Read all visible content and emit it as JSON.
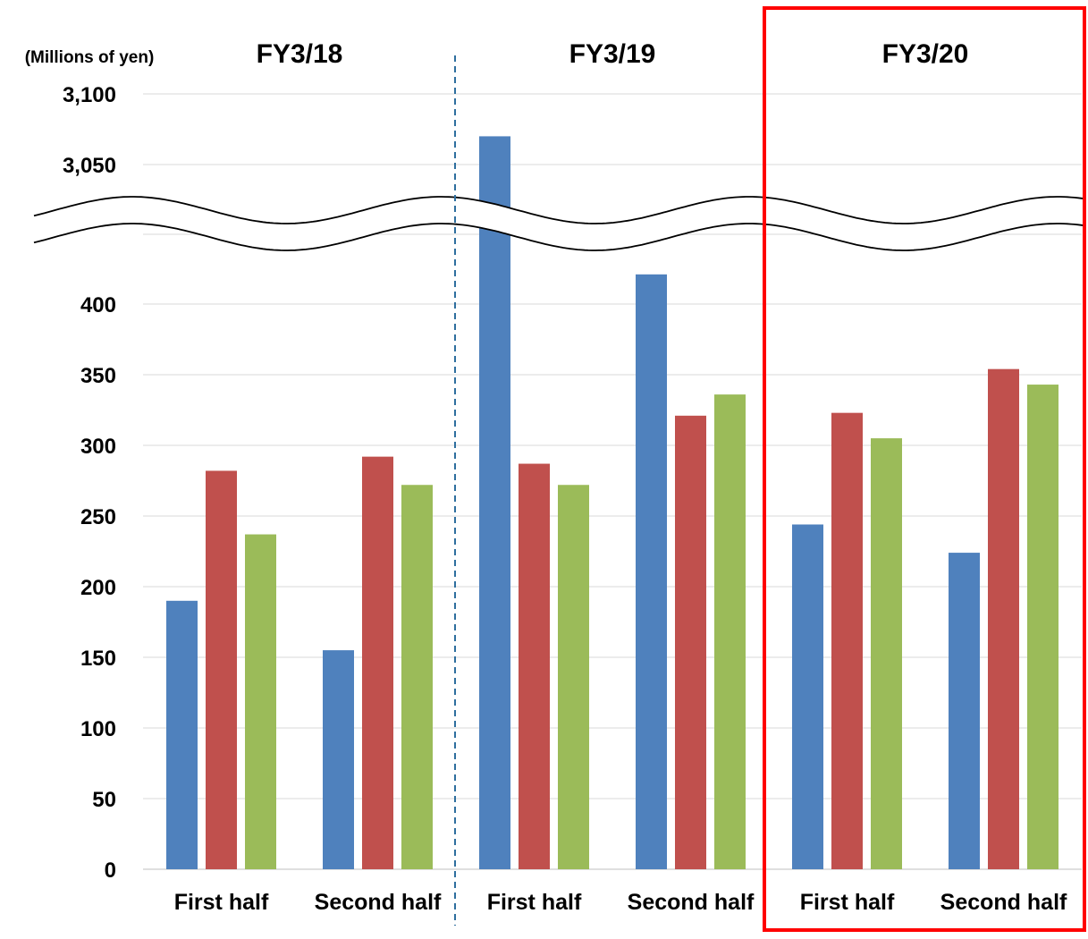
{
  "chart_data": {
    "type": "bar",
    "unit_label": "(Millions of yen)",
    "groups": [
      {
        "label": "FY3/18",
        "highlighted": false
      },
      {
        "label": "FY3/19",
        "highlighted": false
      },
      {
        "label": "FY3/20",
        "highlighted": true
      }
    ],
    "categories": [
      "First half",
      "Second half",
      "First half",
      "Second half",
      "First half",
      "Second half"
    ],
    "category_group": [
      0,
      0,
      1,
      1,
      2,
      2
    ],
    "series": [
      {
        "color": "#4f81bd",
        "values": [
          190,
          155,
          3070,
          421,
          244,
          224
        ]
      },
      {
        "color": "#c0504d",
        "values": [
          282,
          292,
          287,
          321,
          323,
          354
        ]
      },
      {
        "color": "#9bbb59",
        "values": [
          237,
          272,
          272,
          336,
          305,
          343
        ]
      }
    ],
    "y_ticks_lower": [
      {
        "value": 0,
        "label": "0"
      },
      {
        "value": 50,
        "label": "50"
      },
      {
        "value": 100,
        "label": "100"
      },
      {
        "value": 150,
        "label": "150"
      },
      {
        "value": 200,
        "label": "200"
      },
      {
        "value": 250,
        "label": "250"
      },
      {
        "value": 300,
        "label": "300"
      },
      {
        "value": 350,
        "label": "350"
      },
      {
        "value": 400,
        "label": "400"
      }
    ],
    "y_ticks_upper": [
      {
        "value": 3050,
        "label": "3,050"
      },
      {
        "value": 3100,
        "label": "3,100"
      }
    ],
    "axis_break": true,
    "grid": true,
    "legend": "none",
    "highlight_color": "#ff0000",
    "divider_color": "#2e6e9e"
  }
}
